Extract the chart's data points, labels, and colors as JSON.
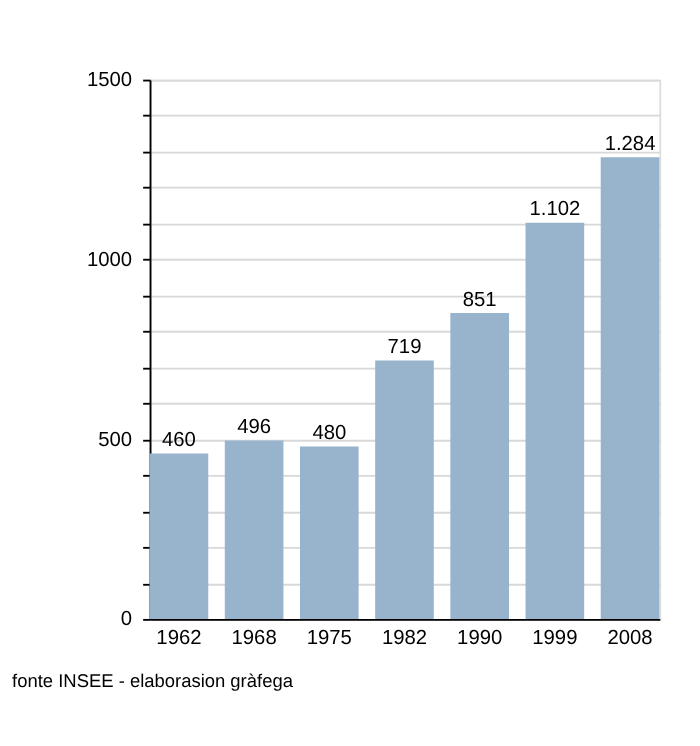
{
  "chart_data": {
    "type": "bar",
    "categories": [
      "1962",
      "1968",
      "1975",
      "1982",
      "1990",
      "1999",
      "2008"
    ],
    "values": [
      460,
      496,
      480,
      719,
      851,
      1102,
      1284
    ],
    "value_labels": [
      "460",
      "496",
      "480",
      "719",
      "851",
      "1.102",
      "1.284"
    ],
    "color": "#98b3cc",
    "ylim": [
      0,
      1500
    ],
    "yticks": [
      0,
      {
        "value": 100,
        "label": null
      },
      {
        "value": 200,
        "label": null
      },
      {
        "value": 300,
        "label": null
      },
      {
        "value": 400,
        "label": null
      },
      500,
      {
        "value": 600,
        "label": null
      },
      {
        "value": 700,
        "label": null
      },
      {
        "value": 800,
        "label": null
      },
      {
        "value": 900,
        "label": null
      },
      1000,
      {
        "value": 1100,
        "label": null
      },
      {
        "value": 1200,
        "label": null
      },
      {
        "value": 1300,
        "label": null
      },
      {
        "value": 1400,
        "label": null
      },
      1500
    ],
    "grid": true,
    "annotations": [
      "fonte INSEE - elaborasion gràfega"
    ]
  }
}
